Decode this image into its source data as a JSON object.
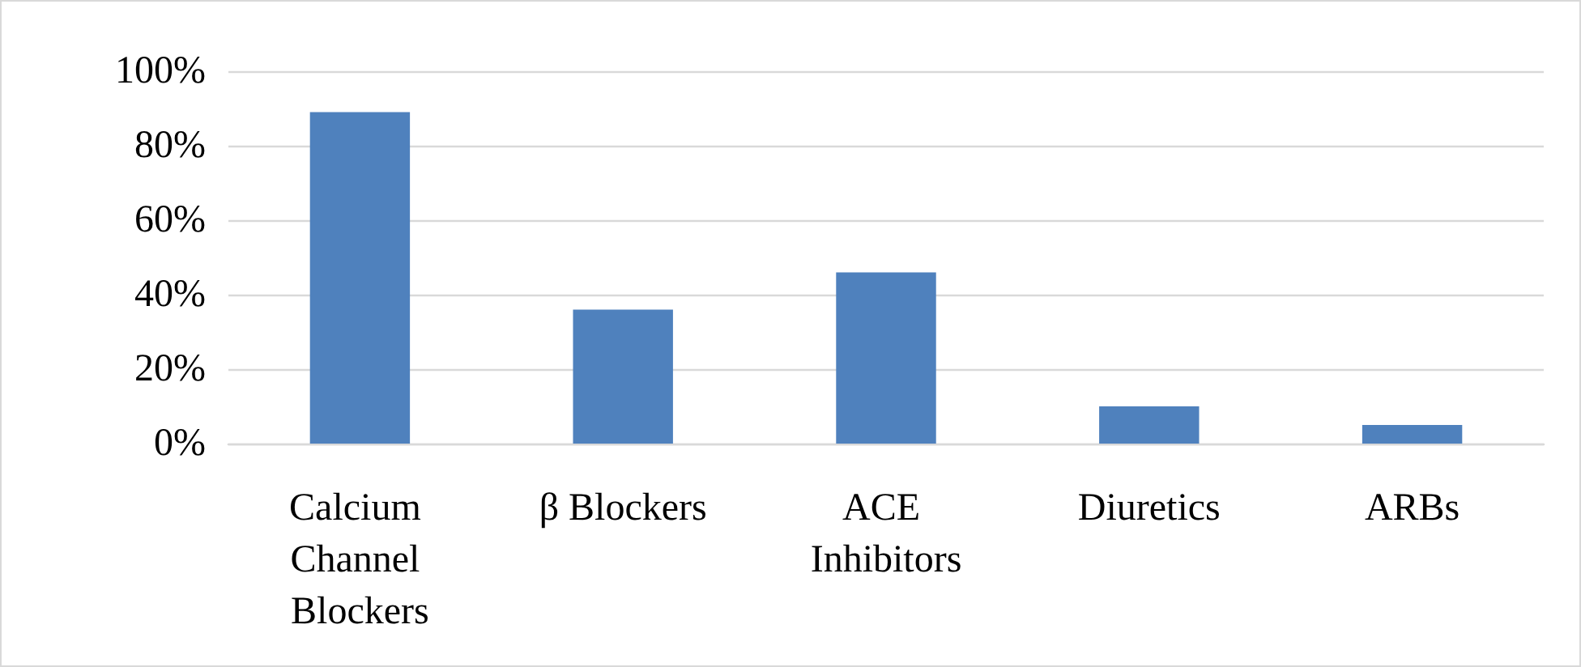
{
  "chart_data": {
    "type": "bar",
    "categories": [
      "Calcium Channel Blockers",
      "β Blockers",
      "ACE Inhibitors",
      "Diuretics",
      "ARBs"
    ],
    "values": [
      89,
      36,
      46,
      10,
      5
    ],
    "color": "#4f81bd",
    "ylim": [
      0,
      100
    ],
    "yticks": [
      {
        "value": 0,
        "label": "0%"
      },
      {
        "value": 20,
        "label": "20%"
      },
      {
        "value": 40,
        "label": "40%"
      },
      {
        "value": 60,
        "label": "60%"
      },
      {
        "value": 80,
        "label": "80%"
      },
      {
        "value": 100,
        "label": "100%"
      }
    ],
    "grid": true
  }
}
